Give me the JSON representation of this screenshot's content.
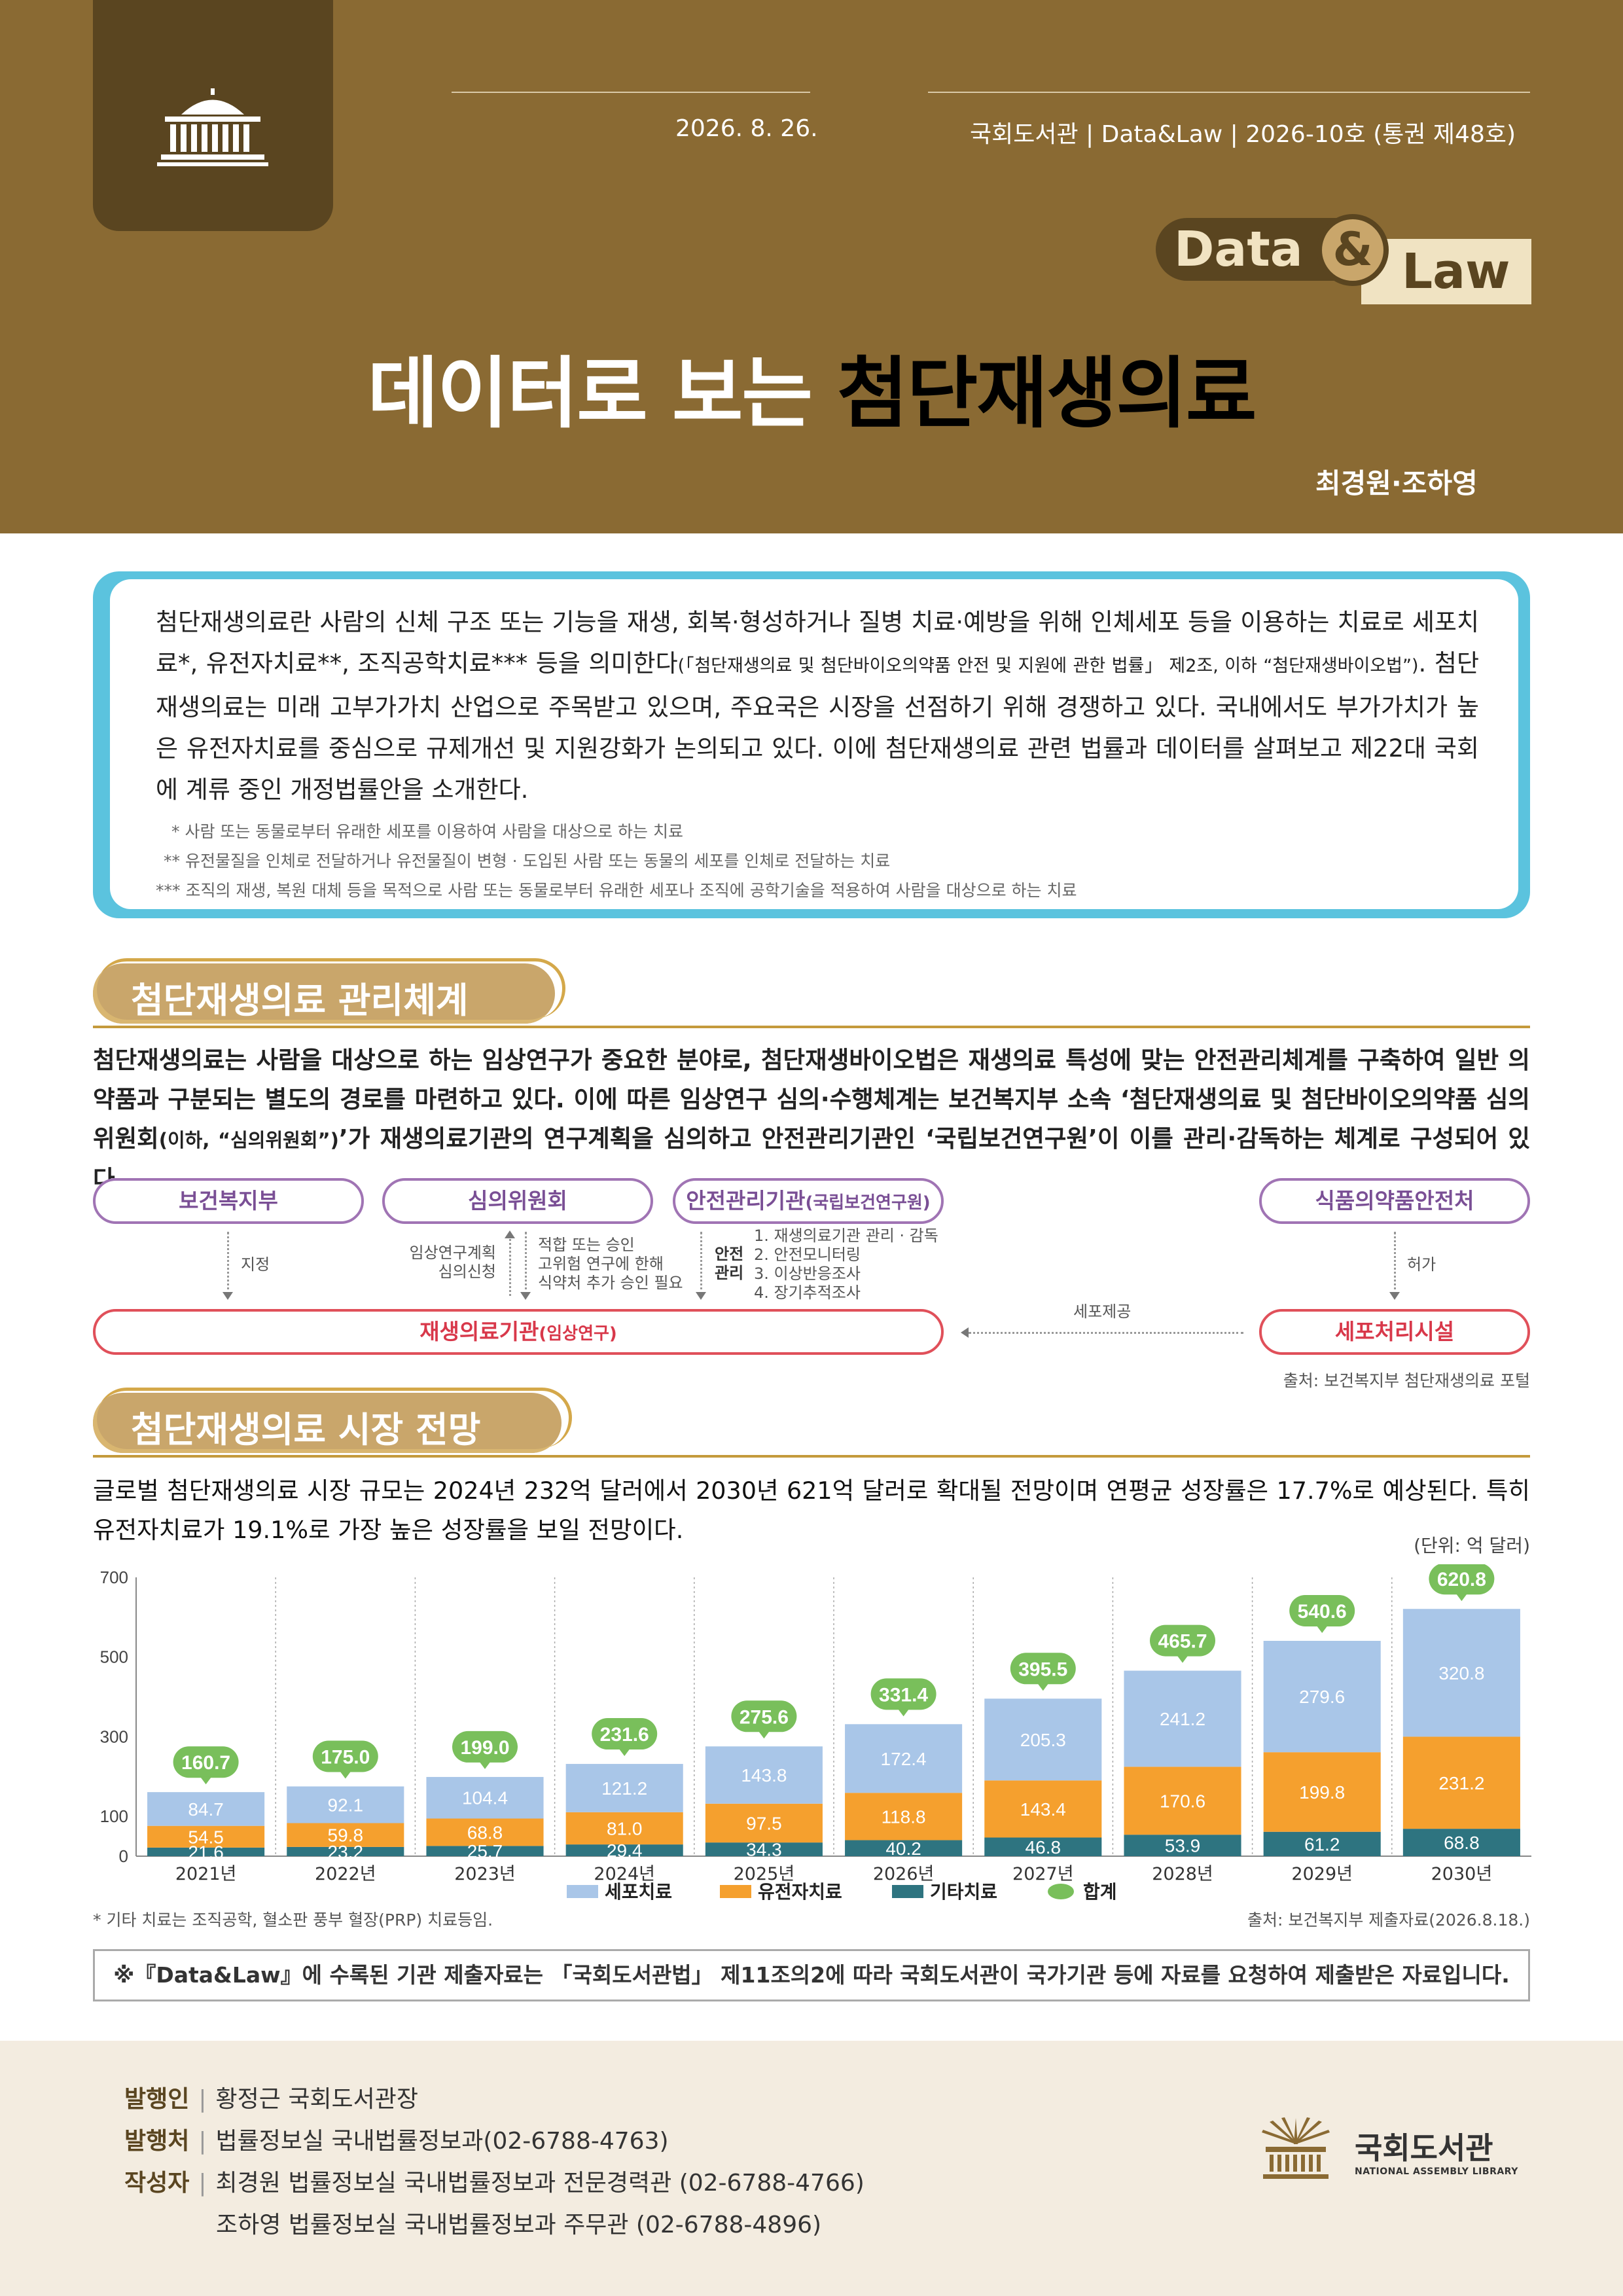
{
  "header": {
    "date": "2026. 8. 26.",
    "publication": "국회도서관 | Data&Law | 2026-10호 (통권 제48호)",
    "badge_data": "Data",
    "badge_amp": "&",
    "badge_law": "Law",
    "title_part1": "데이터로 보는 ",
    "title_part2": "첨단재생의료",
    "authors": "최경원·조하영",
    "colors": {
      "brown": "#8a6a33",
      "dark_brown": "#5a4520",
      "gold": "#c9a66b"
    }
  },
  "intro": {
    "text_main": "첨단재생의료란 사람의 신체 구조 또는 기능을 재생, 회복·형성하거나 질병 치료·예방을 위해 인체세포 등을 이용하는 치료로 세포치료*, 유전자치료**, 조직공학치료*** 등을 의미한다",
    "text_small": "(「첨단재생의료 및 첨단바이오의약품 안전 및 지원에 관한 법률」 제2조, 이하 “첨단재생바이오법”)",
    "text_rest": ". 첨단재생의료는 미래 고부가가치 산업으로 주목받고 있으며, 주요국은 시장을 선점하기 위해 경쟁하고 있다. 국내에서도 부가가치가 높은 유전자치료를 중심으로 규제개선 및 지원강화가 논의되고 있다. 이에 첨단재생의료 관련 법률과 데이터를 살펴보고 제22대 국회에 계류 중인 개정법률안을 소개한다.",
    "footnote1": "* 사람 또는 동물로부터 유래한 세포를 이용하여 사람을 대상으로 하는 치료",
    "footnote2": "** 유전물질을 인체로 전달하거나 유전물질이 변형 · 도입된 사람 또는 동물의 세포를 인체로 전달하는 치료",
    "footnote3": "*** 조직의 재생, 복원 대체 등을 목적으로 사람 또는 동물로부터 유래한 세포나 조직에 공학기술을 적용하여 사람을 대상으로 하는 치료"
  },
  "section1": {
    "title": "첨단재생의료 관리체계",
    "para_a": "첨단재생의료는 사람을 대상으로 하는 임상연구가 중요한 분야로, 첨단재생바이오법은 재생의료 특성에 맞는 안전관리체계를 구축하여 일반 의약품과 구분되는 별도의 경로를 마련하고 있다. 이에 따른 임상연구 심의·수행체계는 보건복지부 소속 ‘첨단재생의료 및 첨단바이오의약품 심의위원회",
    "para_small": "(이하, “심의위원회”)",
    "para_b": "’가 재생의료기관의 연구계획을 심의하고 안전관리기관인 ‘국립보건연구원’이 이를 관리·감독하는 체계로 구성되어 있다.",
    "diagram": {
      "mohw": "보건복지부",
      "committee": "심의위원회",
      "safety_agency": "안전관리기관",
      "safety_agency_sub": "(국립보건연구원)",
      "mfds": "식품의약품안전처",
      "clinic": "재생의료기관",
      "clinic_sub": "(임상연구)",
      "cell_facility": "세포처리시설",
      "label_designate": "지정",
      "label_apply_1": "임상연구계획",
      "label_apply_2": "심의신청",
      "label_approve_1": "적합 또는 승인",
      "label_approve_2": "고위험 연구에 한해",
      "label_approve_3": "식약처 추가 승인 필요",
      "label_safety_1": "안전",
      "label_safety_2": "관리",
      "safety_items": [
        "1. 재생의료기관 관리 · 감독",
        "2. 안전모니터링",
        "3. 이상반응조사",
        "4. 장기추적조사"
      ],
      "label_permit": "허가",
      "label_supply": "세포제공"
    },
    "source": "출처: 보건복지부 첨단재생의료 포털"
  },
  "section2": {
    "title": "첨단재생의료 시장 전망",
    "para": "글로벌 첨단재생의료 시장 규모는 2024년 232억 달러에서 2030년 621억 달러로 확대될 전망이며 연평균 성장률은 17.7%로 예상된다. 특히 유전자치료가 19.1%로 가장 높은 성장률을 보일 전망이다.",
    "unit": "(단위: 억 달러)",
    "footnote": "* 기타 치료는 조직공학, 혈소판 풍부 혈장(PRP) 치료등임.",
    "source": "출처: 보건복지부 제출자료(2026.8.18.)"
  },
  "chart_data": {
    "type": "bar",
    "stacked": true,
    "categories": [
      "2021년",
      "2022년",
      "2023년",
      "2024년",
      "2025년",
      "2026년",
      "2027년",
      "2028년",
      "2029년",
      "2030년"
    ],
    "series": [
      {
        "name": "기타치료",
        "color": "#2e7480",
        "values": [
          21.6,
          23.2,
          25.7,
          29.4,
          34.3,
          40.2,
          46.8,
          53.9,
          61.2,
          68.8
        ]
      },
      {
        "name": "유전자치료",
        "color": "#f5a02e",
        "values": [
          54.5,
          59.8,
          68.8,
          81.0,
          97.5,
          118.8,
          143.4,
          170.6,
          199.8,
          231.2
        ]
      },
      {
        "name": "세포치료",
        "color": "#a9c6e8",
        "values": [
          84.7,
          92.1,
          104.4,
          121.2,
          143.8,
          172.4,
          205.3,
          241.2,
          279.6,
          320.8
        ]
      }
    ],
    "totals_name": "합계",
    "totals_color": "#79bf5b",
    "totals": [
      160.7,
      175.0,
      199.0,
      231.6,
      275.6,
      331.4,
      395.5,
      465.7,
      540.6,
      620.8
    ],
    "total_labels": [
      "160.7",
      "175.0",
      "199.0",
      "231.6",
      "275.6",
      "331.4",
      "395.5",
      "465.7",
      "540.6",
      "620.8"
    ],
    "value_labels": {
      "기타치료": [
        "21.6",
        "23.2",
        "25.7",
        "29.4",
        "34.3",
        "40.2",
        "46.8",
        "53.9",
        "61.2",
        "68.8"
      ],
      "유전자치료": [
        "54.5",
        "59.8",
        "68.8",
        "81.0",
        "97.5",
        "118.8",
        "143.4",
        "170.6",
        "199.8",
        "231.2"
      ],
      "세포치료": [
        "84.7",
        "92.1",
        "104.4",
        "121.2",
        "143.8",
        "172.4",
        "205.3",
        "241.2",
        "279.6",
        "320.8"
      ]
    },
    "legend_order": [
      "세포치료",
      "유전자치료",
      "기타치료",
      "합계"
    ],
    "y_ticks": [
      0,
      100,
      300,
      500,
      700
    ],
    "ylim": [
      0,
      700
    ]
  },
  "notice": "※『Data&Law』에 수록된 기관 제출자료는 「국회도서관법」 제11조의2에 따라 국회도서관이 국가기관 등에 자료를 요청하여 제출받은 자료입니다.",
  "footer": {
    "publisher_label": "발행인",
    "publisher": "황정근 국회도서관장",
    "issuer_label": "발행처",
    "issuer": "법률정보실 국내법률정보과(02-6788-4763)",
    "writer_label": "작성자",
    "writer1": "최경원 법률정보실 국내법률정보과 전문경력관 (02-6788-4766)",
    "writer2": "조하영 법률정보실 국내법률정보과 주무관 (02-6788-4896)",
    "logo_kr": "국회도서관",
    "logo_en": "NATIONAL ASSEMBLY LIBRARY"
  }
}
